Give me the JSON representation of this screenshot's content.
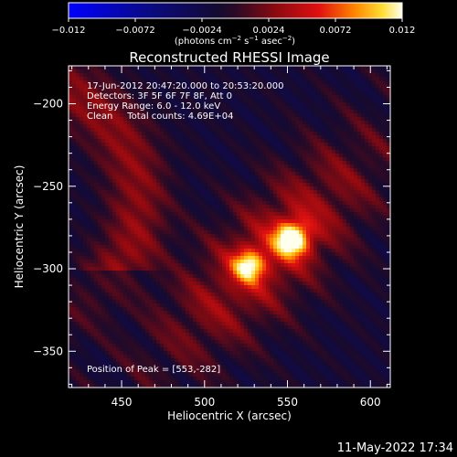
{
  "colorbar": {
    "ticks": [
      "−0.012",
      "−0.0072",
      "−0.0024",
      "0.0024",
      "0.0072",
      "0.012"
    ],
    "unit_label_parts": [
      "(photons cm",
      "−2",
      " s",
      "−1",
      " asec",
      "−2",
      ")"
    ],
    "range": [
      -0.012,
      0.012
    ]
  },
  "chart_data": {
    "type": "heatmap",
    "title": "Reconstructed RHESSI Image",
    "xlabel": "Heliocentric X (arcsec)",
    "ylabel": "Heliocentric Y (arcsec)",
    "xlim": [
      418,
      612
    ],
    "ylim": [
      -372,
      -177
    ],
    "x_ticks": [
      450,
      500,
      550,
      600
    ],
    "y_ticks": [
      -200,
      -250,
      -300,
      -350
    ],
    "x_tick_labels": [
      "450",
      "500",
      "550",
      "600"
    ],
    "y_tick_labels": [
      "−200",
      "−250",
      "−300",
      "−350"
    ],
    "annotations": [
      "17-Jun-2012 20:47:20.000 to 20:53:20.000",
      "Detectors: 3F 5F 6F 7F 8F, Att 0",
      "Energy Range: 6.0 - 12.0 keV",
      "Clean     Total counts: 4.69E+04"
    ],
    "peak_label": "Position of Peak = [553,-282]",
    "sources": [
      {
        "x": 553,
        "y": -282,
        "peak": 0.012
      },
      {
        "x": 527,
        "y": -298,
        "peak": 0.0095
      }
    ],
    "colormap": "red-temperature-diverging"
  },
  "footer": {
    "date": "11-May-2022 17:34"
  }
}
